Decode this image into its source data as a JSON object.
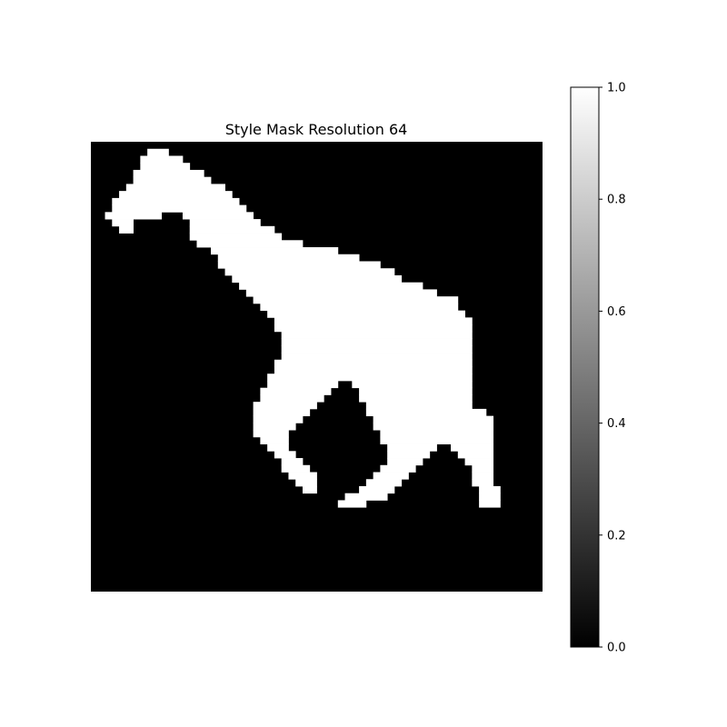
{
  "chart_data": {
    "type": "heatmap",
    "title": "Style Mask Resolution 64",
    "resolution": 64,
    "colormap": "gray",
    "vmin": 0.0,
    "vmax": 1.0,
    "colorbar": {
      "ticks": [
        0.0,
        0.2,
        0.4,
        0.6,
        0.8,
        1.0
      ],
      "tick_labels": [
        "0.0",
        "0.2",
        "0.4",
        "0.6",
        "0.8",
        "1.0"
      ]
    },
    "mask_value_runs": [
      {
        "rows": [
          0,
          0
        ],
        "col_ranges": []
      },
      {
        "rows": [
          1,
          1
        ],
        "col_ranges": [
          [
            8,
            10
          ]
        ]
      },
      {
        "rows": [
          2,
          2
        ],
        "col_ranges": [
          [
            7,
            12
          ]
        ]
      },
      {
        "rows": [
          3,
          3
        ],
        "col_ranges": [
          [
            7,
            13
          ]
        ]
      },
      {
        "rows": [
          4,
          4
        ],
        "col_ranges": [
          [
            6,
            15
          ]
        ]
      },
      {
        "rows": [
          5,
          5
        ],
        "col_ranges": [
          [
            6,
            16
          ]
        ]
      },
      {
        "rows": [
          6,
          6
        ],
        "col_ranges": [
          [
            5,
            18
          ]
        ]
      },
      {
        "rows": [
          7,
          7
        ],
        "col_ranges": [
          [
            4,
            19
          ]
        ]
      },
      {
        "rows": [
          8,
          8
        ],
        "col_ranges": [
          [
            3,
            20
          ]
        ]
      },
      {
        "rows": [
          9,
          9
        ],
        "col_ranges": [
          [
            3,
            21
          ]
        ]
      },
      {
        "rows": [
          10,
          10
        ],
        "col_ranges": [
          [
            2,
            9
          ],
          [
            13,
            22
          ]
        ]
      },
      {
        "rows": [
          11,
          11
        ],
        "col_ranges": [
          [
            3,
            5
          ],
          [
            14,
            23
          ]
        ]
      },
      {
        "rows": [
          12,
          12
        ],
        "col_ranges": [
          [
            4,
            5
          ],
          [
            14,
            25
          ]
        ]
      },
      {
        "rows": [
          13,
          13
        ],
        "col_ranges": [
          [
            14,
            26
          ]
        ]
      },
      {
        "rows": [
          14,
          14
        ],
        "col_ranges": [
          [
            15,
            29
          ]
        ]
      },
      {
        "rows": [
          15,
          15
        ],
        "col_ranges": [
          [
            17,
            34
          ]
        ]
      },
      {
        "rows": [
          16,
          16
        ],
        "col_ranges": [
          [
            18,
            37
          ]
        ]
      },
      {
        "rows": [
          17,
          17
        ],
        "col_ranges": [
          [
            18,
            40
          ]
        ]
      },
      {
        "rows": [
          18,
          18
        ],
        "col_ranges": [
          [
            19,
            42
          ]
        ]
      },
      {
        "rows": [
          19,
          19
        ],
        "col_ranges": [
          [
            20,
            43
          ]
        ]
      },
      {
        "rows": [
          20,
          20
        ],
        "col_ranges": [
          [
            21,
            46
          ]
        ]
      },
      {
        "rows": [
          21,
          21
        ],
        "col_ranges": [
          [
            22,
            48
          ]
        ]
      },
      {
        "rows": [
          22,
          22
        ],
        "col_ranges": [
          [
            23,
            51
          ]
        ]
      },
      {
        "rows": [
          23,
          23
        ],
        "col_ranges": [
          [
            24,
            51
          ]
        ]
      },
      {
        "rows": [
          24,
          24
        ],
        "col_ranges": [
          [
            25,
            52
          ]
        ]
      },
      {
        "rows": [
          25,
          25
        ],
        "col_ranges": [
          [
            26,
            53
          ]
        ]
      },
      {
        "rows": [
          26,
          26
        ],
        "col_ranges": [
          [
            26,
            53
          ]
        ]
      },
      {
        "rows": [
          27,
          27
        ],
        "col_ranges": [
          [
            27,
            53
          ]
        ]
      },
      {
        "rows": [
          28,
          28
        ],
        "col_ranges": [
          [
            27,
            53
          ]
        ]
      },
      {
        "rows": [
          29,
          29
        ],
        "col_ranges": [
          [
            27,
            53
          ]
        ]
      },
      {
        "rows": [
          30,
          30
        ],
        "col_ranges": [
          [
            27,
            53
          ]
        ]
      },
      {
        "rows": [
          31,
          31
        ],
        "col_ranges": [
          [
            26,
            53
          ]
        ]
      },
      {
        "rows": [
          32,
          32
        ],
        "col_ranges": [
          [
            26,
            53
          ]
        ]
      },
      {
        "rows": [
          33,
          33
        ],
        "col_ranges": [
          [
            25,
            36
          ],
          [
            37,
            53
          ]
        ]
      },
      {
        "rows": [
          34,
          34
        ],
        "col_ranges": [
          [
            25,
            34
          ],
          [
            37,
            53
          ]
        ]
      },
      {
        "rows": [
          35,
          35
        ],
        "col_ranges": [
          [
            24,
            33
          ],
          [
            38,
            53
          ]
        ]
      },
      {
        "rows": [
          36,
          36
        ],
        "col_ranges": [
          [
            24,
            32
          ],
          [
            38,
            53
          ]
        ]
      },
      {
        "rows": [
          37,
          37
        ],
        "col_ranges": [
          [
            23,
            31
          ],
          [
            39,
            53
          ]
        ]
      },
      {
        "rows": [
          38,
          38
        ],
        "col_ranges": [
          [
            23,
            30
          ],
          [
            39,
            55
          ]
        ]
      },
      {
        "rows": [
          39,
          39
        ],
        "col_ranges": [
          [
            23,
            29
          ],
          [
            40,
            56
          ]
        ]
      },
      {
        "rows": [
          40,
          40
        ],
        "col_ranges": [
          [
            23,
            28
          ],
          [
            40,
            56
          ]
        ]
      },
      {
        "rows": [
          41,
          41
        ],
        "col_ranges": [
          [
            23,
            27
          ],
          [
            41,
            56
          ]
        ]
      },
      {
        "rows": [
          42,
          42
        ],
        "col_ranges": [
          [
            24,
            27
          ],
          [
            41,
            56
          ]
        ]
      },
      {
        "rows": [
          43,
          43
        ],
        "col_ranges": [
          [
            25,
            27
          ],
          [
            42,
            48
          ],
          [
            51,
            56
          ]
        ]
      },
      {
        "rows": [
          44,
          44
        ],
        "col_ranges": [
          [
            26,
            28
          ],
          [
            42,
            47
          ],
          [
            52,
            56
          ]
        ]
      },
      {
        "rows": [
          45,
          45
        ],
        "col_ranges": [
          [
            27,
            29
          ],
          [
            42,
            46
          ],
          [
            53,
            56
          ]
        ]
      },
      {
        "rows": [
          46,
          46
        ],
        "col_ranges": [
          [
            27,
            30
          ],
          [
            41,
            45
          ],
          [
            54,
            56
          ]
        ]
      },
      {
        "rows": [
          47,
          47
        ],
        "col_ranges": [
          [
            28,
            31
          ],
          [
            40,
            44
          ],
          [
            54,
            56
          ]
        ]
      },
      {
        "rows": [
          48,
          48
        ],
        "col_ranges": [
          [
            29,
            31
          ],
          [
            39,
            43
          ],
          [
            54,
            56
          ]
        ]
      },
      {
        "rows": [
          49,
          49
        ],
        "col_ranges": [
          [
            30,
            31
          ],
          [
            38,
            42
          ],
          [
            55,
            57
          ]
        ]
      },
      {
        "rows": [
          50,
          50
        ],
        "col_ranges": [
          [
            36,
            41
          ],
          [
            55,
            57
          ]
        ]
      },
      {
        "rows": [
          51,
          51
        ],
        "col_ranges": [
          [
            35,
            38
          ],
          [
            55,
            57
          ]
        ]
      },
      {
        "rows": [
          52,
          63
        ],
        "col_ranges": []
      }
    ]
  }
}
